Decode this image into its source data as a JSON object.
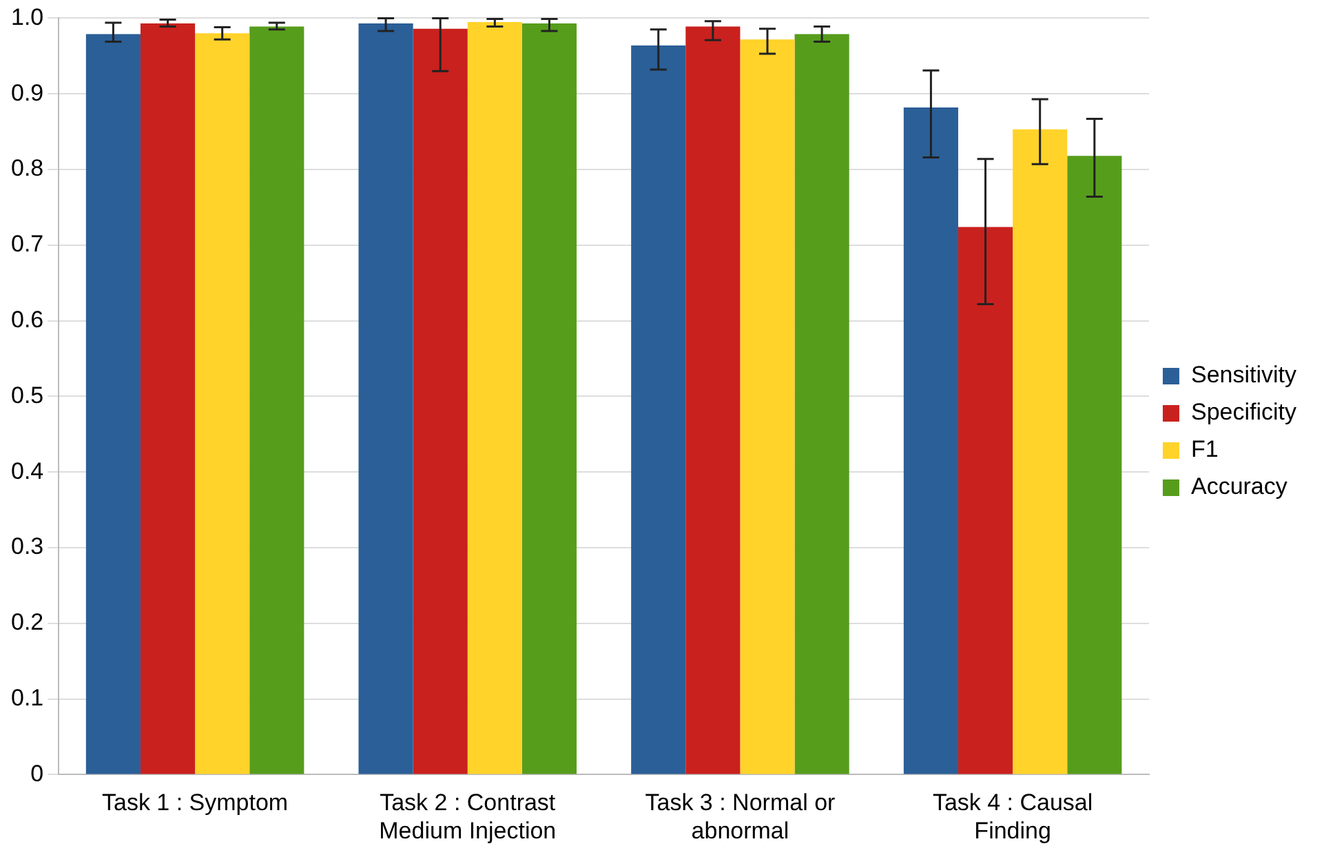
{
  "chart_data": {
    "type": "bar",
    "categories": [
      "Task 1 : Symptom",
      "Task 2 : Contrast Medium Injection",
      "Task 3 : Normal or abnormal",
      "Task 4 : Causal Finding"
    ],
    "series": [
      {
        "name": "Sensitivity",
        "color": "#2b5f97",
        "values": [
          0.979,
          0.993,
          0.964,
          0.882
        ],
        "errors": [
          [
            0.969,
            0.994
          ],
          [
            0.983,
            1.0
          ],
          [
            0.932,
            0.985
          ],
          [
            0.816,
            0.931
          ]
        ]
      },
      {
        "name": "Specificity",
        "color": "#c9211e",
        "values": [
          0.993,
          0.986,
          0.989,
          0.724
        ],
        "errors": [
          [
            0.989,
            0.998
          ],
          [
            0.93,
            1.0
          ],
          [
            0.971,
            0.996
          ],
          [
            0.622,
            0.814
          ]
        ]
      },
      {
        "name": "F1",
        "color": "#ffd32a",
        "values": [
          0.98,
          0.995,
          0.972,
          0.853
        ],
        "errors": [
          [
            0.972,
            0.988
          ],
          [
            0.989,
            0.999
          ],
          [
            0.953,
            0.986
          ],
          [
            0.807,
            0.893
          ]
        ]
      },
      {
        "name": "Accuracy",
        "color": "#579d1c",
        "values": [
          0.989,
          0.993,
          0.979,
          0.818
        ],
        "errors": [
          [
            0.985,
            0.994
          ],
          [
            0.983,
            0.999
          ],
          [
            0.969,
            0.989
          ],
          [
            0.764,
            0.867
          ]
        ]
      }
    ],
    "ylim": [
      0,
      1.0
    ],
    "yticks": [
      0,
      {
        "value": 0.1,
        "label": "0.1"
      },
      {
        "value": 0.2,
        "label": "0.2"
      },
      {
        "value": 0.3,
        "label": "0.3"
      },
      {
        "value": 0.4,
        "label": "0.4"
      },
      {
        "value": 0.5,
        "label": "0.5"
      },
      {
        "value": 0.6,
        "label": "0.6"
      },
      {
        "value": 0.7,
        "label": "0.7"
      },
      {
        "value": 0.8,
        "label": "0.8"
      },
      {
        "value": 0.9,
        "label": "0.9"
      },
      {
        "value": 1.0,
        "label": "1.0"
      }
    ],
    "grid": "y",
    "legend": "right"
  }
}
